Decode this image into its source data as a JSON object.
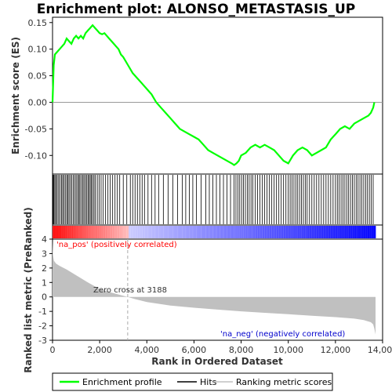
{
  "chart_data": [
    {
      "type": "line",
      "title": "Enrichment plot: ALONSO_METASTASIS_UP",
      "ylabel": "Enrichment score (ES)",
      "xlim": [
        0,
        14000
      ],
      "ylim": [
        -0.135,
        0.16
      ],
      "yticks": [
        "0.15",
        "0.10",
        "0.05",
        "0.00",
        "-0.05",
        "-0.10"
      ],
      "ytick_values": [
        0.15,
        0.1,
        0.05,
        0.0,
        -0.05,
        -0.1
      ],
      "series": [
        {
          "name": "Enrichment profile",
          "color": "#00ff00",
          "x": [
            0,
            50,
            100,
            200,
            300,
            400,
            500,
            600,
            700,
            800,
            900,
            1000,
            1100,
            1200,
            1300,
            1400,
            1500,
            1600,
            1700,
            1800,
            1900,
            2000,
            2100,
            2200,
            2300,
            2400,
            2500,
            2600,
            2700,
            2800,
            2900,
            3000,
            3200,
            3400,
            3600,
            3800,
            4000,
            4200,
            4400,
            4600,
            4800,
            5000,
            5200,
            5400,
            5600,
            5800,
            6000,
            6200,
            6400,
            6600,
            6800,
            7000,
            7200,
            7400,
            7600,
            7700,
            7800,
            7900,
            8000,
            8200,
            8400,
            8600,
            8800,
            9000,
            9200,
            9400,
            9600,
            9800,
            10000,
            10200,
            10400,
            10600,
            10800,
            11000,
            11200,
            11400,
            11600,
            11800,
            12000,
            12200,
            12400,
            12600,
            12800,
            13000,
            13200,
            13400,
            13500,
            13600,
            13650
          ],
          "y": [
            0.0,
            0.07,
            0.09,
            0.095,
            0.1,
            0.105,
            0.11,
            0.12,
            0.115,
            0.11,
            0.12,
            0.125,
            0.12,
            0.125,
            0.12,
            0.13,
            0.135,
            0.14,
            0.145,
            0.14,
            0.135,
            0.13,
            0.128,
            0.13,
            0.125,
            0.12,
            0.115,
            0.11,
            0.105,
            0.1,
            0.09,
            0.085,
            0.07,
            0.055,
            0.045,
            0.035,
            0.025,
            0.015,
            0.0,
            -0.01,
            -0.02,
            -0.03,
            -0.04,
            -0.05,
            -0.055,
            -0.06,
            -0.065,
            -0.07,
            -0.08,
            -0.09,
            -0.095,
            -0.1,
            -0.105,
            -0.11,
            -0.115,
            -0.118,
            -0.115,
            -0.11,
            -0.1,
            -0.095,
            -0.085,
            -0.08,
            -0.085,
            -0.08,
            -0.085,
            -0.09,
            -0.1,
            -0.11,
            -0.115,
            -0.1,
            -0.09,
            -0.085,
            -0.09,
            -0.1,
            -0.095,
            -0.09,
            -0.085,
            -0.07,
            -0.06,
            -0.05,
            -0.045,
            -0.05,
            -0.04,
            -0.035,
            -0.03,
            -0.025,
            -0.02,
            -0.01,
            0.0
          ]
        }
      ]
    },
    {
      "type": "scatter",
      "title": "",
      "series": [
        {
          "name": "Hits",
          "color": "#000000",
          "x": [
            30,
            60,
            100,
            150,
            200,
            260,
            320,
            380,
            430,
            480,
            540,
            600,
            650,
            700,
            760,
            820,
            880,
            940,
            1000,
            1060,
            1110,
            1160,
            1220,
            1280,
            1330,
            1390,
            1440,
            1500,
            1550,
            1600,
            1650,
            1700,
            1760,
            1820,
            1900,
            1980,
            2060,
            2150,
            2250,
            2350,
            2450,
            2550,
            2650,
            2750,
            2850,
            3000,
            3150,
            3300,
            3400,
            3500,
            3600,
            3700,
            3800,
            3900,
            4050,
            4200,
            4350,
            4500,
            4700,
            4900,
            5100,
            5300,
            5500,
            5650,
            5800,
            5950,
            6100,
            6300,
            6500,
            6650,
            6800,
            6950,
            7100,
            7250,
            7400,
            7550,
            7700,
            7780,
            7860,
            7940,
            8020,
            8100,
            8180,
            8260,
            8340,
            8420,
            8500,
            8600,
            8700,
            8800,
            8900,
            9000,
            9100,
            9200,
            9300,
            9400,
            9500,
            9600,
            9700,
            9800,
            9900,
            10000,
            10080,
            10160,
            10240,
            10320,
            10400,
            10480,
            10560,
            10640,
            10720,
            10800,
            10900,
            11000,
            11100,
            11200,
            11300,
            11400,
            11500,
            11600,
            11700,
            11800,
            11900,
            12000,
            12080,
            12160,
            12240,
            12320,
            12400,
            12480,
            12560,
            12640,
            12720,
            12800,
            12880,
            12960,
            13040,
            13120,
            13200,
            13280,
            13360,
            13440,
            13520,
            13600
          ]
        }
      ]
    },
    {
      "type": "area",
      "title": "",
      "ylabel": "Ranked list metric (PreRanked)",
      "xlabel": "Rank in Ordered Dataset",
      "xlim": [
        0,
        14000
      ],
      "ylim": [
        -3,
        4
      ],
      "xticks": [
        "0",
        "2,000",
        "4,000",
        "6,000",
        "8,000",
        "10,000",
        "12,000",
        "14,000"
      ],
      "xtick_values": [
        0,
        2000,
        4000,
        6000,
        8000,
        10000,
        12000,
        14000
      ],
      "yticks": [
        "4",
        "3",
        "2",
        "1",
        "0",
        "-1",
        "-2",
        "-3"
      ],
      "ytick_values": [
        4,
        3,
        2,
        1,
        0,
        -1,
        -2,
        -3
      ],
      "annotations": {
        "pos_label": "'na_pos' (positively correlated)",
        "zero_cross": "Zero cross at 3188",
        "neg_label": "'na_neg' (negatively correlated)"
      },
      "zero_cross_x": 3188,
      "series": [
        {
          "name": "Ranking metric scores",
          "color": "#c0c0c0",
          "x": [
            0,
            20,
            60,
            150,
            300,
            600,
            1000,
            1500,
            2000,
            2500,
            3000,
            3188,
            3500,
            4000,
            5000,
            6000,
            7000,
            8000,
            9000,
            10000,
            11000,
            12000,
            12800,
            13200,
            13500,
            13600,
            13650,
            13700
          ],
          "y": [
            3.9,
            2.9,
            2.5,
            2.3,
            2.15,
            1.9,
            1.5,
            1.0,
            0.55,
            0.3,
            0.08,
            0.0,
            -0.15,
            -0.35,
            -0.6,
            -0.75,
            -0.88,
            -1.0,
            -1.1,
            -1.2,
            -1.3,
            -1.4,
            -1.5,
            -1.6,
            -1.75,
            -1.9,
            -2.2,
            -2.6
          ]
        }
      ]
    }
  ],
  "colors": {
    "profile": "#00ff00",
    "positive": "#ff0000",
    "negative": "#0000ff",
    "pos_label": "#ff0000",
    "neg_label": "#0000cc"
  },
  "legend": {
    "items": [
      {
        "label": "Enrichment profile",
        "icon": "green-line-icon",
        "color": "#00ff00"
      },
      {
        "label": "Hits",
        "icon": "black-line-icon",
        "color": "#000000"
      },
      {
        "label": "Ranking metric scores",
        "icon": "grey-line-icon",
        "color": "#c0c0c0"
      }
    ]
  }
}
